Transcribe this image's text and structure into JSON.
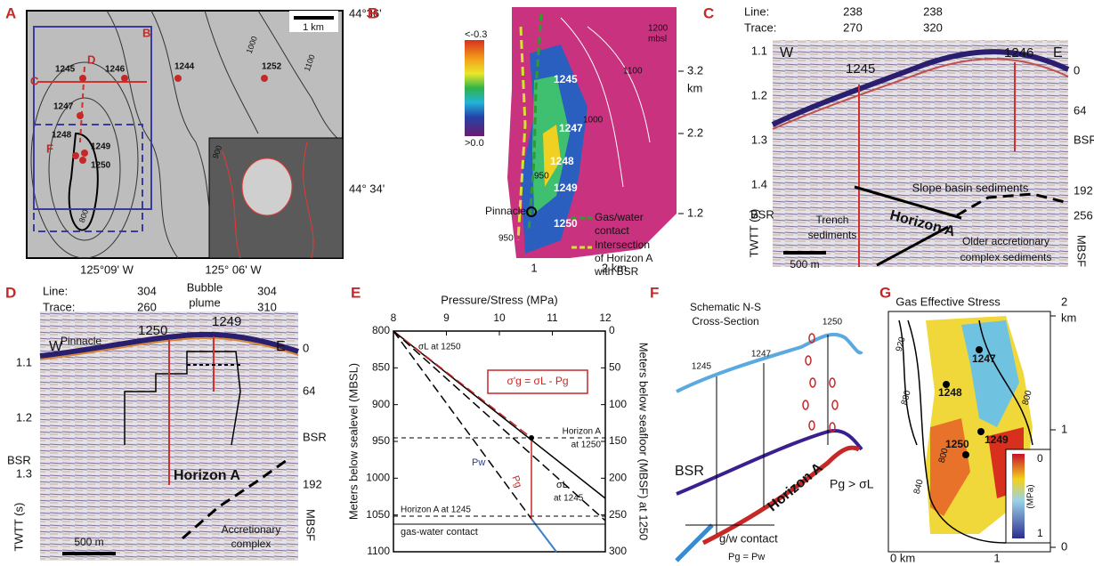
{
  "panel_a": {
    "label": "A",
    "lat_top": "44°36'",
    "lat_mid": "44° 34'",
    "lon_left": "125°09' W",
    "lon_right": "125° 06' W",
    "scale": "1 km",
    "sites": [
      "1245",
      "1246",
      "1244",
      "1252",
      "1247",
      "1248",
      "1249",
      "1250"
    ],
    "boxes": [
      "B",
      "C",
      "D",
      "F"
    ],
    "contours": [
      "1000",
      "900",
      "800",
      "1100"
    ]
  },
  "panel_b": {
    "label": "B",
    "colorbar": [
      "<-0.3",
      ">0.0"
    ],
    "depth": [
      "1200",
      "mbsl"
    ],
    "contours": [
      "1100",
      "1000",
      "950",
      "950"
    ],
    "sites": [
      "1245",
      "1247",
      "1248",
      "1249",
      "1250"
    ],
    "pinnacle": "Pinnacle",
    "legend_gw": [
      "Gas/water",
      "contact"
    ],
    "legend_int": [
      "Intersection",
      "of Horizon A",
      "with BSR"
    ],
    "right_axis": [
      "3.2",
      "km",
      "2.2",
      "1.2"
    ],
    "bottom_axis": [
      "1",
      "2 km"
    ]
  },
  "panel_c": {
    "label": "C",
    "line_label": "Line:",
    "trace_label": "Trace:",
    "lines": [
      "238",
      "238"
    ],
    "traces": [
      "270",
      "320"
    ],
    "twtt": [
      "1.1",
      "1.2",
      "1.3",
      "1.4"
    ],
    "twtt_label": "TWTT (s)",
    "mbsf": [
      "0",
      "64",
      "BSR",
      "192",
      "256"
    ],
    "mbsf_label": "MBSF",
    "west": "W",
    "east": "E",
    "sites": [
      "1245",
      "1246"
    ],
    "bsr": "BSR",
    "horizon": "Horizon A",
    "slope": "Slope basin sediments",
    "trench": [
      "Trench",
      "sediments"
    ],
    "older": [
      "Older accretionary",
      "complex sediments"
    ],
    "scale": "500 m"
  },
  "panel_d": {
    "label": "D",
    "line_label": "Line:",
    "trace_label": "Trace:",
    "lines": [
      "304",
      "304"
    ],
    "traces": [
      "260",
      "310"
    ],
    "bubble": [
      "Bubble",
      "plume"
    ],
    "twtt": [
      "1.1",
      "1.2",
      "1.3"
    ],
    "twtt_label": "TWTT (s)",
    "mbsf": [
      "0",
      "64",
      "BSR",
      "192"
    ],
    "mbsf_label": "MBSF",
    "west": "W",
    "east": "E",
    "pinnacle": "Pinnacle",
    "sites": [
      "1250",
      "1249"
    ],
    "bsr": "BSR",
    "horizon": "Horizon A",
    "accretionary": [
      "Accretionary",
      "complex"
    ],
    "scale": "500 m"
  },
  "panel_e": {
    "label": "E",
    "x_title": "Pressure/Stress (MPa)",
    "y_title": "Meters below sealevel (MBSL)",
    "y2_title": "Meters below seafloor (MBSF) at 1250",
    "xlim": [
      8,
      12
    ],
    "xticks": [
      8,
      9,
      10,
      11,
      12
    ],
    "ylim": [
      800,
      1100
    ],
    "yticks": [
      800,
      850,
      900,
      950,
      1000,
      1050,
      1100
    ],
    "y2lim": [
      0,
      300
    ],
    "y2ticks": [
      0,
      50,
      100,
      150,
      200,
      250,
      300
    ],
    "sigma_1250": "σL at 1250",
    "formula": "σ'g = σL - Pg",
    "horizon_1250": [
      "Horizon A",
      "at 1250"
    ],
    "pw": "Pw",
    "pg": "Pg",
    "sigma_1245": [
      "σL",
      "at 1245"
    ],
    "horizon_1245": "Horizon A at 1245",
    "gwc": "gas-water contact"
  },
  "panel_f": {
    "label": "F",
    "title": [
      "Schematic N-S",
      "Cross-Section"
    ],
    "sites": [
      "1245",
      "1247",
      "1250"
    ],
    "bsr": "BSR",
    "horizon": "Horizon A",
    "pg_sigma": "Pg > σL",
    "gw": "g/w contact",
    "pg_pw": "Pg = Pw"
  },
  "panel_g": {
    "label": "G",
    "title": "Gas Effective Stress",
    "right_axis": [
      "2",
      "km",
      "1",
      "0"
    ],
    "bottom_axis": [
      "0 km",
      "1"
    ],
    "contours": [
      "920",
      "880",
      "840",
      "800",
      "800"
    ],
    "sites": [
      "1247",
      "1248",
      "1250",
      "1249"
    ],
    "colorbar": [
      "0",
      "1"
    ],
    "unit": "(MPa)"
  }
}
